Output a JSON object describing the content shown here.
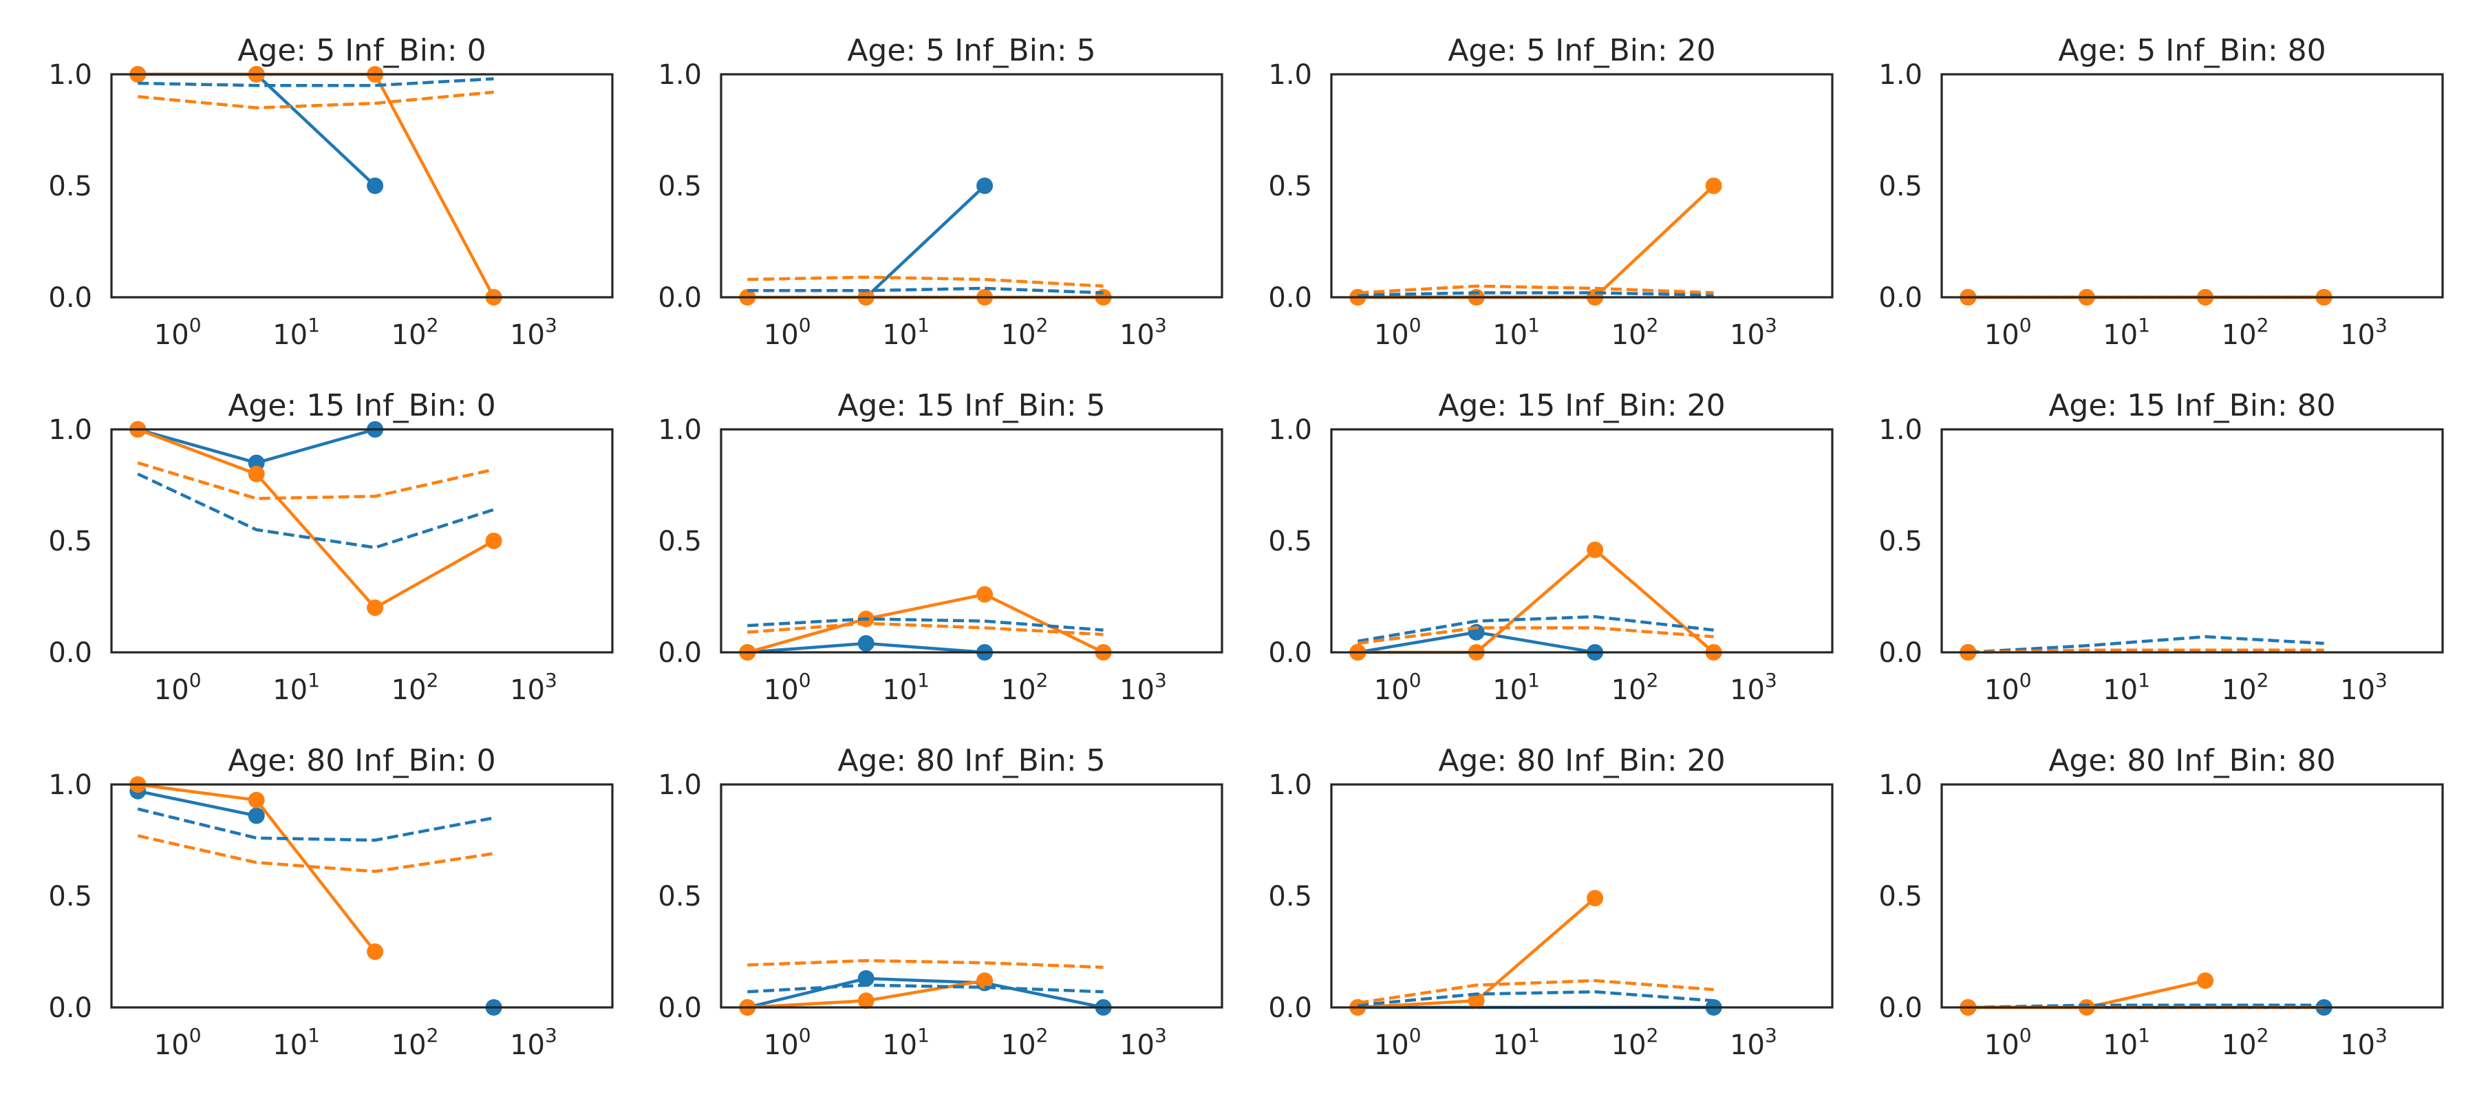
{
  "chart_data": [
    {
      "type": "line",
      "title": "Age: 5 Inf_Bin: 0",
      "xscale": "log",
      "xlim": [
        0.3,
        5000
      ],
      "ylim": [
        0,
        1.0
      ],
      "x_ticks": [
        "0",
        "1",
        "2",
        "3"
      ],
      "y_ticks": [
        "0.0",
        "0.5",
        "1.0"
      ],
      "series": [
        {
          "color": "#1f77b4",
          "style": "solid-markers",
          "x": [
            0.5,
            5,
            50
          ],
          "y": [
            1.0,
            1.0,
            0.5
          ]
        },
        {
          "color": "#ff7f0e",
          "style": "solid-markers",
          "x": [
            0.5,
            5,
            50,
            500
          ],
          "y": [
            1.0,
            1.0,
            1.0,
            0.0
          ]
        },
        {
          "color": "#1f77b4",
          "style": "dashed",
          "x": [
            0.5,
            5,
            50,
            500
          ],
          "y": [
            0.96,
            0.95,
            0.95,
            0.98
          ]
        },
        {
          "color": "#ff7f0e",
          "style": "dashed",
          "x": [
            0.5,
            5,
            50,
            500
          ],
          "y": [
            0.9,
            0.85,
            0.87,
            0.92
          ]
        }
      ]
    },
    {
      "type": "line",
      "title": "Age: 5 Inf_Bin: 5",
      "xscale": "log",
      "xlim": [
        0.3,
        5000
      ],
      "ylim": [
        0,
        1.0
      ],
      "x_ticks": [
        "0",
        "1",
        "2",
        "3"
      ],
      "y_ticks": [
        "0.0",
        "0.5",
        "1.0"
      ],
      "series": [
        {
          "color": "#1f77b4",
          "style": "solid-markers",
          "x": [
            5,
            50
          ],
          "y": [
            0.0,
            0.5
          ]
        },
        {
          "color": "#ff7f0e",
          "style": "solid-markers",
          "x": [
            0.5,
            5,
            50,
            500
          ],
          "y": [
            0.0,
            0.0,
            0.0,
            0.0
          ]
        },
        {
          "color": "#1f77b4",
          "style": "dashed",
          "x": [
            0.5,
            5,
            50,
            500
          ],
          "y": [
            0.03,
            0.03,
            0.04,
            0.02
          ]
        },
        {
          "color": "#ff7f0e",
          "style": "dashed",
          "x": [
            0.5,
            5,
            50,
            500
          ],
          "y": [
            0.08,
            0.09,
            0.08,
            0.05
          ]
        }
      ]
    },
    {
      "type": "line",
      "title": "Age: 5 Inf_Bin: 20",
      "xscale": "log",
      "xlim": [
        0.3,
        5000
      ],
      "ylim": [
        0,
        1.0
      ],
      "x_ticks": [
        "0",
        "1",
        "2",
        "3"
      ],
      "y_ticks": [
        "0.0",
        "0.5",
        "1.0"
      ],
      "series": [
        {
          "color": "#1f77b4",
          "style": "solid-markers",
          "x": [
            0.5,
            5,
            50
          ],
          "y": [
            0.0,
            0.0,
            0.0
          ]
        },
        {
          "color": "#ff7f0e",
          "style": "solid-markers",
          "x": [
            0.5,
            5,
            50,
            500
          ],
          "y": [
            0.0,
            0.0,
            0.0,
            0.5
          ]
        },
        {
          "color": "#1f77b4",
          "style": "dashed",
          "x": [
            0.5,
            5,
            50,
            500
          ],
          "y": [
            0.01,
            0.02,
            0.02,
            0.01
          ]
        },
        {
          "color": "#ff7f0e",
          "style": "dashed",
          "x": [
            0.5,
            5,
            50,
            500
          ],
          "y": [
            0.02,
            0.05,
            0.04,
            0.02
          ]
        }
      ]
    },
    {
      "type": "line",
      "title": "Age: 5 Inf_Bin: 80",
      "xscale": "log",
      "xlim": [
        0.3,
        5000
      ],
      "ylim": [
        0,
        1.0
      ],
      "x_ticks": [
        "0",
        "1",
        "2",
        "3"
      ],
      "y_ticks": [
        "0.0",
        "0.5",
        "1.0"
      ],
      "series": [
        {
          "color": "#1f77b4",
          "style": "solid-markers",
          "x": [
            0.5,
            5,
            50,
            500
          ],
          "y": [
            0.0,
            0.0,
            0.0,
            0.0
          ]
        },
        {
          "color": "#ff7f0e",
          "style": "solid-markers",
          "x": [
            0.5,
            5,
            50,
            500
          ],
          "y": [
            0.0,
            0.0,
            0.0,
            0.0
          ]
        },
        {
          "color": "#1f77b4",
          "style": "dashed",
          "x": [
            0.5,
            5,
            50,
            500
          ],
          "y": [
            0.0,
            0.0,
            0.0,
            0.0
          ]
        },
        {
          "color": "#ff7f0e",
          "style": "dashed",
          "x": [
            0.5,
            5,
            50,
            500
          ],
          "y": [
            0.0,
            0.0,
            0.0,
            0.0
          ]
        }
      ]
    },
    {
      "type": "line",
      "title": "Age: 15 Inf_Bin: 0",
      "xscale": "log",
      "xlim": [
        0.3,
        5000
      ],
      "ylim": [
        0,
        1.0
      ],
      "x_ticks": [
        "0",
        "1",
        "2",
        "3"
      ],
      "y_ticks": [
        "0.0",
        "0.5",
        "1.0"
      ],
      "series": [
        {
          "color": "#1f77b4",
          "style": "solid-markers",
          "x": [
            0.5,
            5,
            50
          ],
          "y": [
            1.0,
            0.85,
            1.0
          ]
        },
        {
          "color": "#ff7f0e",
          "style": "solid-markers",
          "x": [
            0.5,
            5,
            50,
            500
          ],
          "y": [
            1.0,
            0.8,
            0.2,
            0.5
          ]
        },
        {
          "color": "#1f77b4",
          "style": "dashed",
          "x": [
            0.5,
            5,
            50,
            500
          ],
          "y": [
            0.8,
            0.55,
            0.47,
            0.64
          ]
        },
        {
          "color": "#ff7f0e",
          "style": "dashed",
          "x": [
            0.5,
            5,
            50,
            500
          ],
          "y": [
            0.85,
            0.69,
            0.7,
            0.82
          ]
        }
      ]
    },
    {
      "type": "line",
      "title": "Age: 15 Inf_Bin: 5",
      "xscale": "log",
      "xlim": [
        0.3,
        5000
      ],
      "ylim": [
        0,
        1.0
      ],
      "x_ticks": [
        "0",
        "1",
        "2",
        "3"
      ],
      "y_ticks": [
        "0.0",
        "0.5",
        "1.0"
      ],
      "series": [
        {
          "color": "#1f77b4",
          "style": "solid-markers",
          "x": [
            0.5,
            5,
            50
          ],
          "y": [
            0.0,
            0.04,
            0.0
          ]
        },
        {
          "color": "#ff7f0e",
          "style": "solid-markers",
          "x": [
            0.5,
            5,
            50,
            500
          ],
          "y": [
            0.0,
            0.15,
            0.26,
            0.0
          ]
        },
        {
          "color": "#1f77b4",
          "style": "dashed",
          "x": [
            0.5,
            5,
            50,
            500
          ],
          "y": [
            0.12,
            0.15,
            0.14,
            0.1
          ]
        },
        {
          "color": "#ff7f0e",
          "style": "dashed",
          "x": [
            0.5,
            5,
            50,
            500
          ],
          "y": [
            0.09,
            0.13,
            0.11,
            0.08
          ]
        }
      ]
    },
    {
      "type": "line",
      "title": "Age: 15 Inf_Bin: 20",
      "xscale": "log",
      "xlim": [
        0.3,
        5000
      ],
      "ylim": [
        0,
        1.0
      ],
      "x_ticks": [
        "0",
        "1",
        "2",
        "3"
      ],
      "y_ticks": [
        "0.0",
        "0.5",
        "1.0"
      ],
      "series": [
        {
          "color": "#1f77b4",
          "style": "solid-markers",
          "x": [
            0.5,
            5,
            50
          ],
          "y": [
            0.0,
            0.09,
            0.0
          ]
        },
        {
          "color": "#ff7f0e",
          "style": "solid-markers",
          "x": [
            0.5,
            5,
            50,
            500
          ],
          "y": [
            0.0,
            0.0,
            0.46,
            0.0
          ]
        },
        {
          "color": "#1f77b4",
          "style": "dashed",
          "x": [
            0.5,
            5,
            50,
            500
          ],
          "y": [
            0.05,
            0.14,
            0.16,
            0.1
          ]
        },
        {
          "color": "#ff7f0e",
          "style": "dashed",
          "x": [
            0.5,
            5,
            50,
            500
          ],
          "y": [
            0.04,
            0.11,
            0.11,
            0.07
          ]
        }
      ]
    },
    {
      "type": "line",
      "title": "Age: 15 Inf_Bin: 80",
      "xscale": "log",
      "xlim": [
        0.3,
        5000
      ],
      "ylim": [
        0,
        1.0
      ],
      "x_ticks": [
        "0",
        "1",
        "2",
        "3"
      ],
      "y_ticks": [
        "0.0",
        "0.5",
        "1.0"
      ],
      "series": [
        {
          "color": "#1f77b4",
          "style": "solid-markers",
          "x": [
            0.5
          ],
          "y": [
            0.0
          ]
        },
        {
          "color": "#ff7f0e",
          "style": "solid-markers",
          "x": [
            0.5
          ],
          "y": [
            0.0
          ]
        },
        {
          "color": "#1f77b4",
          "style": "dashed",
          "x": [
            0.5,
            5,
            50,
            500
          ],
          "y": [
            0.0,
            0.03,
            0.07,
            0.04
          ]
        },
        {
          "color": "#ff7f0e",
          "style": "dashed",
          "x": [
            0.5,
            5,
            50,
            500
          ],
          "y": [
            0.0,
            0.01,
            0.01,
            0.01
          ]
        }
      ]
    },
    {
      "type": "line",
      "title": "Age: 80 Inf_Bin: 0",
      "xscale": "log",
      "xlim": [
        0.3,
        5000
      ],
      "ylim": [
        0,
        1.0
      ],
      "x_ticks": [
        "0",
        "1",
        "2",
        "3"
      ],
      "y_ticks": [
        "0.0",
        "0.5",
        "1.0"
      ],
      "series": [
        {
          "color": "#1f77b4",
          "style": "solid-markers",
          "x": [
            0.5,
            5
          ],
          "y": [
            0.97,
            0.86
          ]
        },
        {
          "color": "#1f77b4",
          "style": "markers-only",
          "x": [
            500
          ],
          "y": [
            0.0
          ]
        },
        {
          "color": "#ff7f0e",
          "style": "solid-markers",
          "x": [
            0.5,
            5,
            50
          ],
          "y": [
            1.0,
            0.93,
            0.25
          ]
        },
        {
          "color": "#1f77b4",
          "style": "dashed",
          "x": [
            0.5,
            5,
            50,
            500
          ],
          "y": [
            0.89,
            0.76,
            0.75,
            0.85
          ]
        },
        {
          "color": "#ff7f0e",
          "style": "dashed",
          "x": [
            0.5,
            5,
            50,
            500
          ],
          "y": [
            0.77,
            0.65,
            0.61,
            0.69
          ]
        }
      ]
    },
    {
      "type": "line",
      "title": "Age: 80 Inf_Bin: 5",
      "xscale": "log",
      "xlim": [
        0.3,
        5000
      ],
      "ylim": [
        0,
        1.0
      ],
      "x_ticks": [
        "0",
        "1",
        "2",
        "3"
      ],
      "y_ticks": [
        "0.0",
        "0.5",
        "1.0"
      ],
      "series": [
        {
          "color": "#1f77b4",
          "style": "solid-markers",
          "x": [
            0.5,
            5,
            50,
            500
          ],
          "y": [
            0.0,
            0.13,
            0.11,
            0.0
          ]
        },
        {
          "color": "#ff7f0e",
          "style": "solid-markers",
          "x": [
            0.5,
            5,
            50
          ],
          "y": [
            0.0,
            0.03,
            0.12
          ]
        },
        {
          "color": "#1f77b4",
          "style": "dashed",
          "x": [
            0.5,
            5,
            50,
            500
          ],
          "y": [
            0.07,
            0.1,
            0.09,
            0.07
          ]
        },
        {
          "color": "#ff7f0e",
          "style": "dashed",
          "x": [
            0.5,
            5,
            50,
            500
          ],
          "y": [
            0.19,
            0.21,
            0.2,
            0.18
          ]
        }
      ]
    },
    {
      "type": "line",
      "title": "Age: 80 Inf_Bin: 20",
      "xscale": "log",
      "xlim": [
        0.3,
        5000
      ],
      "ylim": [
        0,
        1.0
      ],
      "x_ticks": [
        "0",
        "1",
        "2",
        "3"
      ],
      "y_ticks": [
        "0.0",
        "0.5",
        "1.0"
      ],
      "series": [
        {
          "color": "#1f77b4",
          "style": "solid-markers",
          "x": [
            0.5,
            500
          ],
          "y": [
            0.0,
            0.0
          ]
        },
        {
          "color": "#ff7f0e",
          "style": "solid-markers",
          "x": [
            0.5,
            5,
            50
          ],
          "y": [
            0.0,
            0.03,
            0.49
          ]
        },
        {
          "color": "#1f77b4",
          "style": "dashed",
          "x": [
            0.5,
            5,
            50,
            500
          ],
          "y": [
            0.01,
            0.06,
            0.07,
            0.03
          ]
        },
        {
          "color": "#ff7f0e",
          "style": "dashed",
          "x": [
            0.5,
            5,
            50,
            500
          ],
          "y": [
            0.02,
            0.1,
            0.12,
            0.08
          ]
        }
      ]
    },
    {
      "type": "line",
      "title": "Age: 80 Inf_Bin: 80",
      "xscale": "log",
      "xlim": [
        0.3,
        5000
      ],
      "ylim": [
        0,
        1.0
      ],
      "x_ticks": [
        "0",
        "1",
        "2",
        "3"
      ],
      "y_ticks": [
        "0.0",
        "0.5",
        "1.0"
      ],
      "series": [
        {
          "color": "#1f77b4",
          "style": "solid-markers",
          "x": [
            0.5,
            500
          ],
          "y": [
            0.0,
            0.0
          ]
        },
        {
          "color": "#ff7f0e",
          "style": "solid-markers",
          "x": [
            0.5,
            5,
            50
          ],
          "y": [
            0.0,
            0.0,
            0.12
          ]
        },
        {
          "color": "#1f77b4",
          "style": "dashed",
          "x": [
            0.5,
            5,
            50,
            500
          ],
          "y": [
            0.0,
            0.01,
            0.01,
            0.01
          ]
        },
        {
          "color": "#ff7f0e",
          "style": "dashed",
          "x": [
            0.5,
            5,
            50,
            500
          ],
          "y": [
            0.0,
            0.0,
            0.0,
            0.0
          ]
        }
      ]
    }
  ]
}
